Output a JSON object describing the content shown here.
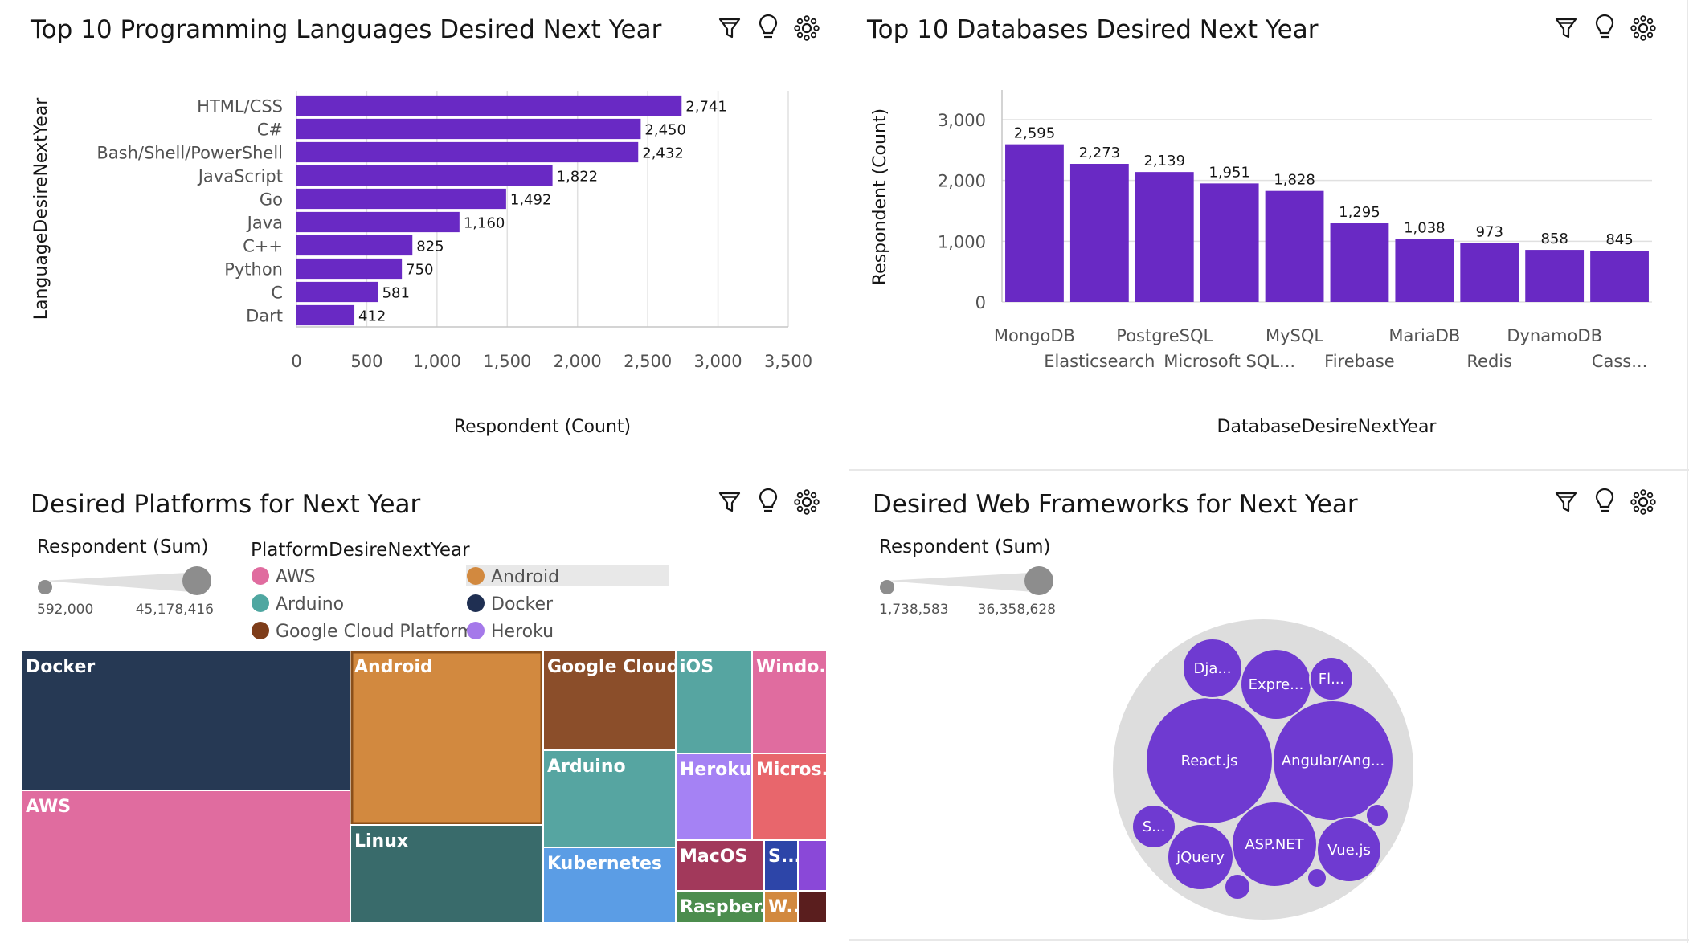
{
  "panels": {
    "languages": {
      "title": "Top 10 Programming Languages Desired Next Year"
    },
    "databases": {
      "title": "Top 10 Databases Desired Next Year"
    },
    "platforms": {
      "title": "Desired Platforms for Next Year"
    },
    "frameworks": {
      "title": "Desired Web Frameworks for Next Year"
    }
  },
  "toolbar_icons": [
    "filter-icon",
    "lightbulb-icon",
    "settings-icon"
  ],
  "colors": {
    "bar": "#6929c4",
    "bubble": "#6f3ad1",
    "bubble_bg": "#dddddd",
    "grid": "#e0e0e0"
  },
  "chart_data": [
    {
      "type": "bar",
      "orientation": "horizontal",
      "title": "Top 10 Programming Languages Desired Next Year",
      "categories": [
        "HTML/CSS",
        "C#",
        "Bash/Shell/PowerShell",
        "JavaScript",
        "Go",
        "Java",
        "C++",
        "Python",
        "C",
        "Dart"
      ],
      "values": [
        2741,
        2450,
        2432,
        1822,
        1492,
        1160,
        825,
        750,
        581,
        412
      ],
      "value_labels": [
        "2,741",
        "2,450",
        "2,432",
        "1,822",
        "1,492",
        "1,160",
        "825",
        "750",
        "581",
        "412"
      ],
      "xlabel": "Respondent (Count)",
      "ylabel": "LanguageDesireNextYear",
      "xlim": [
        0,
        3500
      ],
      "x_ticks": [
        0,
        500,
        1000,
        1500,
        2000,
        2500,
        3000,
        3500
      ],
      "x_tick_labels": [
        "0",
        "500",
        "1,000",
        "1,500",
        "2,000",
        "2,500",
        "3,000",
        "3,500"
      ],
      "grid": true
    },
    {
      "type": "bar",
      "orientation": "vertical",
      "title": "Top 10 Databases Desired Next Year",
      "categories": [
        "MongoDB",
        "Elasticsearch",
        "PostgreSQL",
        "Microsoft SQL...",
        "MySQL",
        "Firebase",
        "MariaDB",
        "Redis",
        "DynamoDB",
        "Cass..."
      ],
      "values": [
        2595,
        2273,
        2139,
        1951,
        1828,
        1295,
        1038,
        973,
        858,
        845
      ],
      "value_labels": [
        "2,595",
        "2,273",
        "2,139",
        "1,951",
        "1,828",
        "1,295",
        "1,038",
        "973",
        "858",
        "845"
      ],
      "xlabel": "DatabaseDesireNextYear",
      "ylabel": "Respondent (Count)",
      "ylim": [
        0,
        3000
      ],
      "y_ticks": [
        0,
        1000,
        2000,
        3000
      ],
      "y_tick_labels": [
        "0",
        "1,000",
        "2,000",
        "3,000"
      ],
      "grid": true
    },
    {
      "type": "treemap",
      "title": "Desired Platforms for Next Year",
      "size_legend": {
        "title": "Respondent (Sum)",
        "min": "592,000",
        "max": "45,178,416"
      },
      "color_legend": {
        "title": "PlatformDesireNextYear",
        "items": [
          {
            "name": "AWS",
            "color": "#e06c9f"
          },
          {
            "name": "Android",
            "color": "#d2893f"
          },
          {
            "name": "Arduino",
            "color": "#4fa7a1"
          },
          {
            "name": "Docker",
            "color": "#1f2f52"
          },
          {
            "name": "Google Cloud Platform",
            "color": "#7e3d1a"
          },
          {
            "name": "Heroku",
            "color": "#a579ea"
          }
        ],
        "highlighted": "Android"
      },
      "tiles": [
        {
          "label": "Docker",
          "color": "#263954"
        },
        {
          "label": "AWS",
          "color": "#e06c9f"
        },
        {
          "label": "Android",
          "color": "#d2893f",
          "highlighted": true
        },
        {
          "label": "Linux",
          "color": "#396b6b"
        },
        {
          "label": "Google Cloud ...",
          "color": "#8b4e2a"
        },
        {
          "label": "Arduino",
          "color": "#56a5a1"
        },
        {
          "label": "Kubernetes",
          "color": "#5b9de5"
        },
        {
          "label": "iOS",
          "color": "#56a5a1"
        },
        {
          "label": "Windo...",
          "color": "#e06c9f"
        },
        {
          "label": "Heroku",
          "color": "#a582f4"
        },
        {
          "label": "Micros...",
          "color": "#e8666c"
        },
        {
          "label": "MacOS",
          "color": "#a2395b"
        },
        {
          "label": "S...",
          "color": "#2d45a8"
        },
        {
          "label": "",
          "color": "#8a48d8"
        },
        {
          "label": "Raspber...",
          "color": "#4c8d4e"
        },
        {
          "label": "W...",
          "color": "#d2893f"
        },
        {
          "label": "",
          "color": "#5a1e1e"
        }
      ]
    },
    {
      "type": "bubble",
      "title": "Desired Web Frameworks for Next Year",
      "size_legend": {
        "title": "Respondent (Sum)",
        "min": "1,738,583",
        "max": "36,358,628"
      },
      "bubbles": [
        {
          "label": "React.js"
        },
        {
          "label": "Angular/Ang..."
        },
        {
          "label": "ASP.NET"
        },
        {
          "label": "Expre..."
        },
        {
          "label": "Vue.js"
        },
        {
          "label": "jQuery"
        },
        {
          "label": "Dja..."
        },
        {
          "label": "Fl..."
        },
        {
          "label": "S..."
        },
        {
          "label": ""
        },
        {
          "label": ""
        },
        {
          "label": ""
        }
      ]
    }
  ]
}
